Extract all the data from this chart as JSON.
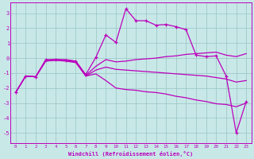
{
  "xlabel": "Windchill (Refroidissement éolien,°C)",
  "xlim": [
    -0.5,
    23.5
  ],
  "ylim": [
    -5.7,
    3.7
  ],
  "yticks": [
    -5,
    -4,
    -3,
    -2,
    -1,
    0,
    1,
    2,
    3
  ],
  "xtick_vals": [
    0,
    1,
    2,
    3,
    4,
    5,
    6,
    7,
    8,
    9,
    10,
    11,
    12,
    13,
    14,
    15,
    16,
    17,
    18,
    19,
    20,
    21,
    22,
    23
  ],
  "bg_color": "#c8e8e8",
  "line_color": "#bb00bb",
  "grid_color": "#a0c8c8",
  "series_marked": {
    "x": [
      0,
      1,
      2,
      3,
      4,
      5,
      6,
      7,
      8,
      9,
      10,
      11,
      12,
      13,
      14,
      15,
      16,
      17,
      18,
      19,
      20,
      21,
      22,
      23
    ],
    "y": [
      -2.3,
      -1.2,
      -1.25,
      -0.1,
      -0.1,
      -0.15,
      -0.2,
      -1.1,
      0.05,
      1.55,
      1.05,
      3.3,
      2.5,
      2.5,
      2.2,
      2.25,
      2.1,
      1.9,
      0.2,
      0.1,
      0.15,
      -1.2,
      -5.0,
      -2.9
    ]
  },
  "series_upper": {
    "x": [
      0,
      1,
      2,
      3,
      4,
      5,
      6,
      7,
      8,
      9,
      10,
      11,
      12,
      13,
      14,
      15,
      16,
      17,
      18,
      19,
      20,
      21,
      22,
      23
    ],
    "y": [
      -2.3,
      -1.2,
      -1.25,
      -0.15,
      -0.1,
      -0.1,
      -0.2,
      -1.15,
      -0.55,
      -0.1,
      -0.25,
      -0.2,
      -0.1,
      -0.05,
      0.0,
      0.1,
      0.15,
      0.25,
      0.3,
      0.35,
      0.4,
      0.2,
      0.1,
      0.3
    ]
  },
  "series_mid": {
    "x": [
      0,
      1,
      2,
      3,
      4,
      5,
      6,
      7,
      8,
      9,
      10,
      11,
      12,
      13,
      14,
      15,
      16,
      17,
      18,
      19,
      20,
      21,
      22,
      23
    ],
    "y": [
      -2.3,
      -1.2,
      -1.25,
      -0.2,
      -0.15,
      -0.2,
      -0.3,
      -1.2,
      -0.8,
      -0.6,
      -0.75,
      -0.8,
      -0.85,
      -0.9,
      -0.95,
      -1.0,
      -1.05,
      -1.1,
      -1.15,
      -1.2,
      -1.3,
      -1.4,
      -1.6,
      -1.5
    ]
  },
  "series_lower": {
    "x": [
      0,
      1,
      2,
      3,
      4,
      5,
      6,
      7,
      8,
      9,
      10,
      11,
      12,
      13,
      14,
      15,
      16,
      17,
      18,
      19,
      20,
      21,
      22,
      23
    ],
    "y": [
      -2.3,
      -1.2,
      -1.25,
      -0.2,
      -0.1,
      -0.15,
      -0.25,
      -1.2,
      -1.05,
      -1.5,
      -2.0,
      -2.1,
      -2.15,
      -2.25,
      -2.3,
      -2.4,
      -2.55,
      -2.65,
      -2.8,
      -2.9,
      -3.05,
      -3.1,
      -3.25,
      -3.0
    ]
  }
}
